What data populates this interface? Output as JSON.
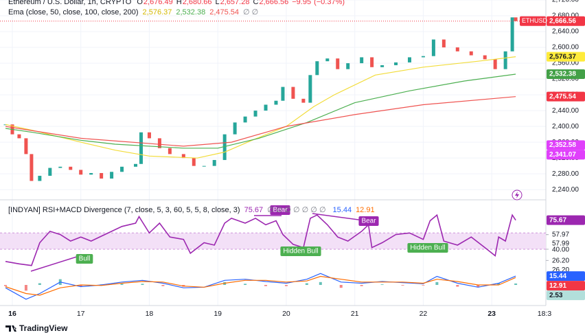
{
  "brand": "TradingView",
  "chart_data": [
    {
      "type": "candlestick",
      "title": "Ethereum / U.S. Dollar, 1h, CRYPTO",
      "header_values": [
        {
          "name": "O",
          "value": 2676.49,
          "label": "2,676.49"
        },
        {
          "name": "H",
          "value": 2680.66,
          "label": "2,680.66"
        },
        {
          "name": "L",
          "value": 2657.28,
          "label": "2,657.28"
        },
        {
          "name": "C",
          "value": 2666.56,
          "label": "2,666.56"
        }
      ],
      "change": {
        "value": -9.95,
        "label": "−9.95"
      },
      "change_pct": {
        "value": -0.37,
        "label": "(−0.37%)"
      },
      "symbol": "ETHUSD",
      "up_color": "#26a69a",
      "down_color": "#ef5350",
      "x": [
        15.9,
        16.0,
        16.1,
        16.2,
        16.28,
        16.4,
        16.55,
        16.7,
        16.85,
        17.0,
        17.15,
        17.3,
        17.45,
        17.6,
        17.8,
        17.88,
        18.0,
        18.15,
        18.3,
        18.5,
        18.65,
        18.8,
        18.95,
        19.1,
        19.25,
        19.4,
        19.55,
        19.7,
        19.85,
        19.95,
        20.1,
        20.25,
        20.35,
        20.45,
        20.6,
        20.75,
        20.9,
        21.1,
        21.25,
        21.4,
        21.6,
        21.8,
        22.0,
        22.15,
        22.3,
        22.5,
        22.7,
        22.9,
        23.05,
        23.2,
        23.3,
        23.35
      ],
      "values": [
        2405,
        2380,
        2370,
        2330,
        2262,
        2275,
        2295,
        2298,
        2290,
        2278,
        2282,
        2268,
        2285,
        2298,
        2305,
        2385,
        2370,
        2345,
        2330,
        2320,
        2300,
        2300,
        2315,
        2380,
        2410,
        2425,
        2440,
        2455,
        2465,
        2500,
        2470,
        2460,
        2530,
        2565,
        2572,
        2545,
        2560,
        2575,
        2550,
        2555,
        2562,
        2575,
        2578,
        2620,
        2600,
        2590,
        2580,
        2570,
        2545,
        2590,
        2676,
        2666.56
      ],
      "subtitle": "Ema (close, 50, close, 100, close, 200)",
      "hidden_values": "∅ ∅",
      "series": [
        {
          "color": "#f2dc3a",
          "x": [
            15.9,
            16.3,
            17.0,
            17.5,
            18.0,
            18.7,
            19.1,
            19.5,
            20.0,
            20.4,
            20.7,
            21.3,
            22.0,
            22.8,
            23.35
          ],
          "values": [
            2405,
            2390,
            2360,
            2340,
            2325,
            2320,
            2335,
            2365,
            2400,
            2450,
            2480,
            2530,
            2550,
            2565,
            2576.37
          ]
        },
        {
          "color": "#4caf50",
          "x": [
            15.9,
            16.3,
            17.0,
            17.5,
            18.5,
            19.0,
            19.6,
            20.3,
            21.0,
            21.8,
            22.6,
            23.35
          ],
          "values": [
            2395,
            2385,
            2365,
            2355,
            2345,
            2345,
            2370,
            2410,
            2460,
            2490,
            2515,
            2532.38
          ]
        },
        {
          "color": "#ef5350",
          "x": [
            15.9,
            17.0,
            18.5,
            19.2,
            20.0,
            21.0,
            22.0,
            23.35
          ],
          "values": [
            2400,
            2370,
            2350,
            2360,
            2400,
            2430,
            2455,
            2475.54
          ]
        }
      ],
      "xlim": [
        15.82,
        23.74
      ],
      "xticks": [
        16,
        17,
        18,
        19,
        20,
        21,
        22,
        23,
        {
          "value": 23.77,
          "label": "18:3"
        }
      ],
      "ylim": [
        2216,
        2720
      ],
      "yticks": [
        {
          "value": 2240,
          "label": "2,240.00"
        },
        {
          "value": 2280,
          "label": "2,280.00"
        },
        {
          "value": 2320,
          "label": "2,320.00"
        },
        {
          "value": 2360,
          "label": "2,360.00"
        },
        {
          "value": 2400,
          "label": "2,400.00"
        },
        {
          "value": 2440,
          "label": "2,440.00"
        },
        {
          "value": 2480,
          "label": "2,480.00"
        },
        {
          "value": 2520,
          "label": "2,520.00"
        },
        {
          "value": 2560,
          "label": "2,560.00"
        },
        {
          "value": 2600,
          "label": "2,600.00"
        },
        {
          "value": 2640,
          "label": "2,640.00"
        },
        {
          "value": 2680,
          "label": "2,680.00"
        },
        {
          "value": 2720,
          "label": "2,720.00"
        }
      ],
      "grid": true,
      "axis_labels": [
        {
          "value": 2666.56,
          "label": "2,666.56",
          "color": "#f23645"
        },
        {
          "value": 2576.37,
          "label": "2,576.37",
          "color": "#ffeb3b"
        },
        {
          "value": 2532.38,
          "label": "2,532.38",
          "color": "#43a047"
        },
        {
          "value": 2475.54,
          "label": "2,475.54",
          "color": "#f23645"
        },
        {
          "value": 2352.58,
          "label": "2,352.58",
          "color": "#e040fb"
        },
        {
          "value": 2341.07,
          "label": "2,341.07",
          "color": "#e040fb"
        }
      ]
    },
    {
      "type": "line",
      "title": "[INDYAN] RSI+MACD Divergence (7, close, 5, 3, 60, 5, 5, 8, close, 3)",
      "hidden_values": "∅ ∅ ∅ ∅ ∅ ∅ ∅",
      "ylim": [
        13,
        99
      ],
      "yticks": [
        57.97,
        57.99,
        {
          "value": 40,
          "label": "40.00"
        },
        {
          "value": 26.2,
          "label": "26.20"
        }
      ],
      "band": [
        40,
        60
      ],
      "band_color": "#f3e0f7",
      "series": [
        {
          "color": "#9c27b0",
          "x": [
            15.9,
            16.1,
            16.28,
            16.4,
            16.55,
            16.7,
            16.85,
            17.0,
            17.15,
            17.3,
            17.45,
            17.6,
            17.8,
            17.85,
            18.0,
            18.15,
            18.3,
            18.5,
            18.6,
            18.8,
            18.95,
            19.1,
            19.2,
            19.4,
            19.55,
            19.7,
            19.85,
            19.95,
            20.1,
            20.25,
            20.35,
            20.45,
            20.6,
            20.75,
            20.9,
            21.1,
            21.2,
            21.25,
            21.4,
            21.6,
            21.8,
            22.0,
            22.1,
            22.2,
            22.3,
            22.5,
            22.7,
            22.9,
            23.05,
            23.1,
            23.2,
            23.3,
            23.35
          ],
          "values": [
            25,
            22,
            20,
            48,
            62,
            58,
            50,
            55,
            50,
            56,
            62,
            68,
            72,
            80,
            60,
            72,
            55,
            52,
            35,
            48,
            45,
            72,
            78,
            72,
            78,
            70,
            75,
            58,
            46,
            42,
            78,
            82,
            70,
            55,
            50,
            62,
            70,
            42,
            48,
            58,
            60,
            52,
            75,
            82,
            50,
            45,
            55,
            42,
            32,
            55,
            50,
            82,
            75.67
          ]
        }
      ],
      "axis_labels": [
        {
          "value": 75.67,
          "label": "75.67",
          "color": "#9c27b0"
        }
      ],
      "annotations": [
        {
          "text": "Bull",
          "color": "#4caf50"
        },
        {
          "text": "Bear",
          "color": "#9c27b0"
        },
        {
          "text": "Hidden Bull",
          "color": "#4caf50"
        },
        {
          "text": "Bear",
          "color": "#9c27b0"
        },
        {
          "text": "Hidden Bull",
          "color": "#4caf50"
        }
      ]
    },
    {
      "type": "line",
      "ylim": [
        -30,
        30
      ],
      "yticks": [
        {
          "value": 26.2,
          "label": "26.20"
        }
      ],
      "series": [
        {
          "color": "#2962ff",
          "x": [
            15.9,
            16.2,
            16.4,
            16.7,
            17.0,
            17.3,
            17.6,
            17.9,
            18.2,
            18.5,
            18.8,
            19.1,
            19.4,
            19.7,
            20.0,
            20.3,
            20.5,
            20.8,
            21.1,
            21.4,
            21.7,
            22.0,
            22.2,
            22.5,
            22.8,
            23.1,
            23.35
          ],
          "values": [
            -5,
            -25,
            -15,
            5,
            -3,
            0,
            5,
            8,
            3,
            -5,
            -4,
            8,
            10,
            6,
            3,
            10,
            20,
            5,
            3,
            6,
            4,
            2,
            15,
            3,
            -4,
            3,
            15.44
          ]
        },
        {
          "color": "#ff6d00",
          "x": [
            15.9,
            16.2,
            16.4,
            16.7,
            17.0,
            17.3,
            17.6,
            17.9,
            18.2,
            18.5,
            18.8,
            19.1,
            19.4,
            19.7,
            20.0,
            20.3,
            20.5,
            20.8,
            21.1,
            21.4,
            21.7,
            22.0,
            22.2,
            22.5,
            22.8,
            23.1,
            23.35
          ],
          "values": [
            -3,
            -15,
            -18,
            -5,
            0,
            -1,
            3,
            6,
            5,
            -2,
            -4,
            3,
            8,
            8,
            5,
            7,
            15,
            10,
            5,
            5,
            5,
            3,
            10,
            6,
            0,
            0,
            12.91
          ]
        }
      ],
      "histogram": {
        "up_color": "#26a69a",
        "down_color": "#ef5350",
        "x": [
          15.9,
          16.2,
          16.4,
          16.7,
          17.0,
          17.3,
          17.6,
          17.9,
          18.2,
          18.5,
          18.8,
          19.1,
          19.4,
          19.7,
          20.0,
          20.3,
          20.5,
          20.8,
          21.1,
          21.4,
          21.7,
          22.0,
          22.2,
          22.5,
          22.8,
          23.1,
          23.35
        ],
        "values": [
          -2,
          -10,
          3,
          10,
          -3,
          1,
          2,
          2,
          -2,
          -3,
          0,
          5,
          2,
          -2,
          -2,
          3,
          5,
          -5,
          -2,
          1,
          -1,
          -1,
          5,
          -3,
          -4,
          3,
          2.53
        ]
      },
      "axis_labels": [
        {
          "value": 15.44,
          "label": "15.44",
          "color": "#2962ff"
        },
        {
          "value": 12.91,
          "label": "12.91",
          "color": "#f23645"
        },
        {
          "value": 2.53,
          "label": "2.53",
          "color": "#b2dfdb"
        }
      ]
    }
  ]
}
